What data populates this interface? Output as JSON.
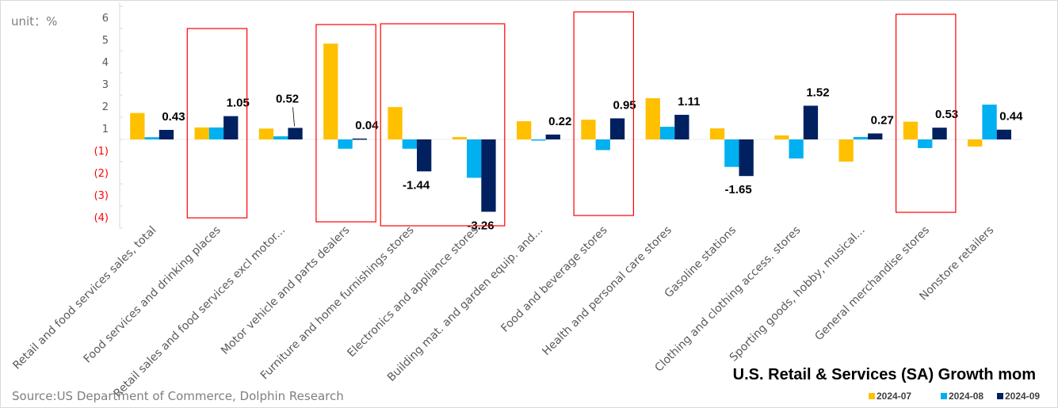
{
  "chart_data": {
    "type": "bar",
    "title": "U.S. Retail & Services (SA) Growth mom",
    "unit_label": "unit：%",
    "source": "Source:US Department of Commerce, Dolphin Research",
    "ylim": [
      -4,
      6
    ],
    "y_tick_labels": [
      "6",
      "5",
      "4",
      "3",
      "2",
      "1",
      "(1)",
      "(2)",
      "(3)",
      "(4)"
    ],
    "y_tick_colors": {
      "positive": "#595959",
      "negative": "#ff0000"
    },
    "grid": false,
    "legend": "bottom-right",
    "categories": [
      "Retail and food services sales, total",
      "Food services and drinking places",
      "Retail sales and food services excl motor...",
      "Motor vehicle and parts dealers",
      "Furniture and home furnishings stores",
      "Electronics and appliance stores",
      "Building mat. and garden equip. and...",
      "Food and beverage stores",
      "Health and personal care stores",
      "Gasoline stations",
      "Clothing and clothing access. stores",
      "Sporting goods, hobby, musical...",
      "General merchandise stores",
      "Nonstore retailers"
    ],
    "series": [
      {
        "name": "2024-07",
        "color": "#ffc000",
        "values": [
          1.19,
          0.54,
          0.49,
          4.32,
          1.46,
          0.11,
          0.82,
          0.89,
          1.86,
          0.5,
          0.18,
          -1.0,
          0.8,
          -0.32
        ]
      },
      {
        "name": "2024-08",
        "color": "#00b0f0",
        "values": [
          0.1,
          0.54,
          0.14,
          -0.42,
          -0.42,
          -1.73,
          -0.02,
          -0.48,
          0.57,
          -1.24,
          -0.86,
          0.11,
          -0.39,
          1.57
        ]
      },
      {
        "name": "2024-09",
        "color": "#002060",
        "values": [
          0.43,
          1.05,
          0.52,
          0.04,
          -1.44,
          -3.26,
          0.22,
          0.95,
          1.11,
          -1.65,
          1.52,
          0.27,
          0.53,
          0.44
        ],
        "data_labels": [
          "0.43",
          "1.05",
          "0.52",
          "0.04",
          "-1.44",
          "-3.26",
          "0.22",
          "0.95",
          "1.11",
          "-1.65",
          "1.52",
          "0.27",
          "0.53",
          "0.44"
        ]
      }
    ],
    "highlight_color": "#ff0000",
    "highlighted_categories": [
      [
        "Food services and drinking places"
      ],
      [
        "Motor vehicle and parts dealers"
      ],
      [
        "Furniture and home furnishings stores",
        "Electronics and appliance stores"
      ],
      [
        "Food and beverage stores"
      ],
      [
        "General merchandise stores"
      ]
    ]
  }
}
